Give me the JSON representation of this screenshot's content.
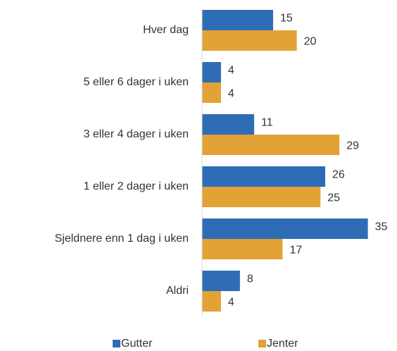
{
  "chart_data": {
    "type": "bar",
    "orientation": "horizontal",
    "categories": [
      "Hver dag",
      "5 eller 6 dager i uken",
      "3 eller 4 dager i uken",
      "1 eller 2 dager i uken",
      "Sjeldnere enn 1 dag i uken",
      "Aldri"
    ],
    "series": [
      {
        "name": "Gutter",
        "color": "#2e6db6",
        "values": [
          15,
          4,
          11,
          26,
          35,
          8
        ]
      },
      {
        "name": "Jenter",
        "color": "#e2a235",
        "values": [
          20,
          4,
          29,
          25,
          17,
          4
        ]
      }
    ],
    "xlim": [
      0,
      41
    ]
  }
}
